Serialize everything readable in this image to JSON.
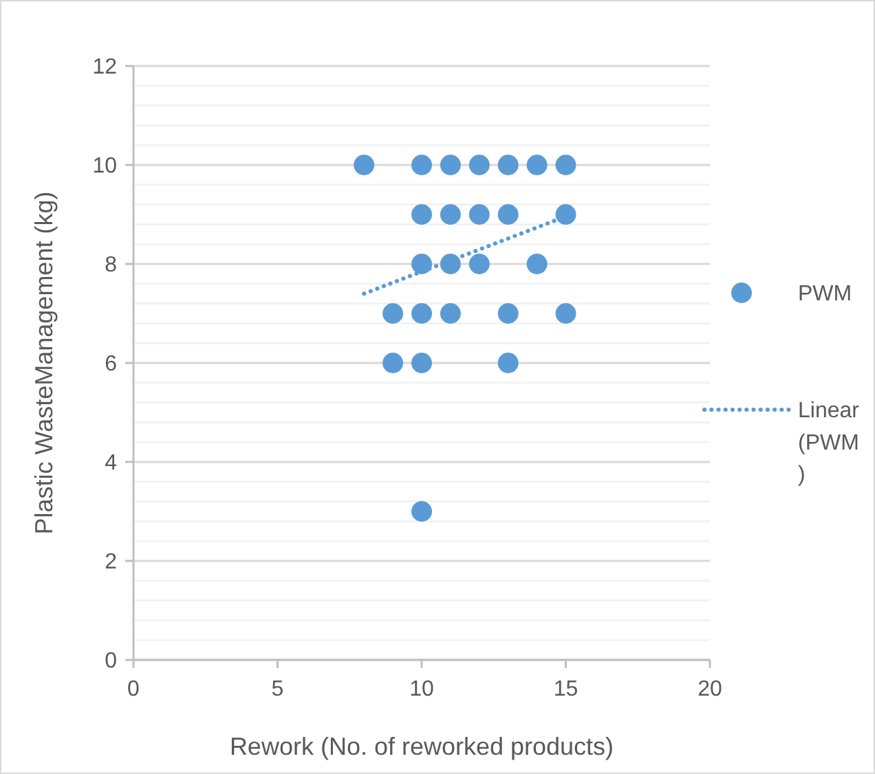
{
  "chart_data": {
    "type": "scatter",
    "xlabel": "Rework (No. of reworked products)",
    "ylabel": "Plastic WasteManagement (kg)",
    "xlim": [
      0,
      20
    ],
    "xticks": [
      0,
      5,
      10,
      15,
      20
    ],
    "ylim": [
      0,
      12
    ],
    "yticks": [
      0,
      2,
      4,
      6,
      8,
      10,
      12
    ],
    "grid": "y",
    "legend": "right",
    "marker": "circle",
    "series": [
      {
        "name": "PWM",
        "color": "#5b9bd5",
        "x": [
          8,
          10,
          11,
          12,
          13,
          14,
          15,
          10,
          11,
          12,
          13,
          15,
          10,
          11,
          12,
          14,
          9,
          10,
          11,
          13,
          15,
          9,
          10,
          13,
          10
        ],
        "values": [
          10,
          10,
          10,
          10,
          10,
          10,
          10,
          9,
          9,
          9,
          9,
          9,
          8,
          8,
          8,
          8,
          7,
          7,
          7,
          7,
          7,
          6,
          6,
          6,
          3
        ]
      },
      {
        "name": "Linear\n(PWM\n)",
        "type": "line",
        "color": "#5b9bd5",
        "line_style": "dotted",
        "marker": "none",
        "x": [
          8,
          15
        ],
        "values": [
          7.4,
          8.96
        ]
      }
    ]
  }
}
